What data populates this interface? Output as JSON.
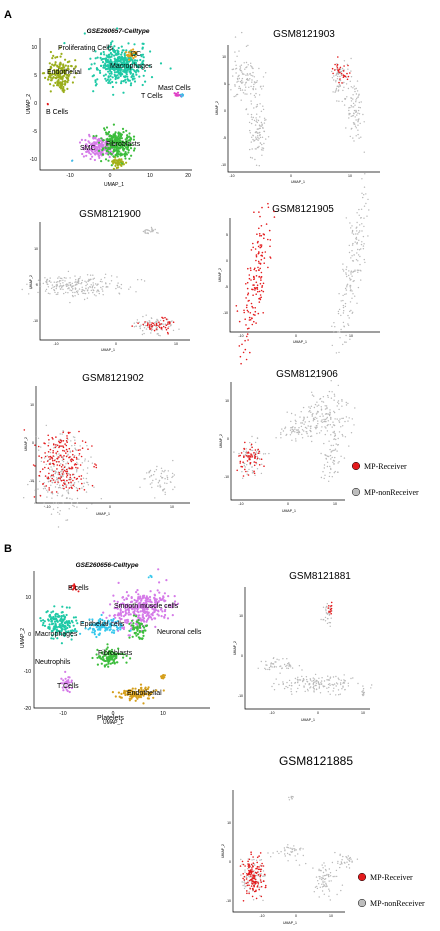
{
  "panel_a": {
    "label": "A",
    "plots": [
      {
        "title": "GSE260657-Celltype",
        "xlabel": "UMAP_1",
        "ylabel": "UMAP_2",
        "xticks": [
          "-10",
          "0",
          "10",
          "20"
        ],
        "yticks": [
          "10",
          "5",
          "0",
          "-5",
          "-10"
        ],
        "clusters": [
          "Proliferating Cells",
          "DC",
          "Macrophages",
          "Endothelial",
          "Mast Cells",
          "T Cells",
          "B Cells",
          "SMC",
          "Fibroblasts"
        ]
      },
      {
        "title": "GSM8121903",
        "xlabel": "UMAP_1",
        "ylabel": "UMAP_2",
        "xticks": [
          "-10",
          "0",
          "10"
        ],
        "yticks": [
          "10",
          "5",
          "0",
          "-5",
          "-10"
        ]
      },
      {
        "title": "GSM8121900",
        "xlabel": "UMAP_1",
        "ylabel": "UMAP_2",
        "xticks": [
          "-10",
          "0",
          "10"
        ],
        "yticks": [
          "10",
          "0",
          "-10"
        ]
      },
      {
        "title": "GSM8121905",
        "xlabel": "UMAP_1",
        "ylabel": "UMAP_2",
        "xticks": [
          "-10",
          "0",
          "10"
        ],
        "yticks": [
          "5",
          "0",
          "-5",
          "-10"
        ]
      },
      {
        "title": "GSM8121902",
        "xlabel": "UMAP_1",
        "ylabel": "UMAP_2",
        "xticks": [
          "-10",
          "0",
          "10"
        ],
        "yticks": [
          "10",
          "0",
          "-10"
        ]
      },
      {
        "title": "GSM8121906",
        "xlabel": "UMAP_1",
        "ylabel": "UMAP_2",
        "xticks": [
          "-10",
          "0",
          "10"
        ],
        "yticks": [
          "10",
          "0",
          "-10"
        ]
      }
    ],
    "legend": [
      {
        "label": "MP-Receiver",
        "color": "#e31a1c"
      },
      {
        "label": "MP-nonReceiver",
        "color": "#bdbdbd"
      }
    ]
  },
  "panel_b": {
    "label": "B",
    "plots": [
      {
        "title": "GSE260656-Celltype",
        "xlabel": "UMAP_1",
        "ylabel": "UMAP_2",
        "xticks": [
          "-10",
          "0",
          "10"
        ],
        "yticks": [
          "10",
          "0",
          "-10",
          "-20"
        ],
        "clusters": [
          "B cells",
          "Smooth muscle cells",
          "Epithelial cells",
          "Neuronal cells",
          "Macrophages",
          "Fibroblasts",
          "Neutrophils",
          "T Cells",
          "Endothelial",
          "Platelets"
        ]
      },
      {
        "title": "GSM8121881",
        "xlabel": "UMAP_1",
        "ylabel": "UMAP_2",
        "xticks": [
          "-10",
          "0",
          "10"
        ],
        "yticks": [
          "10",
          "0",
          "-10"
        ]
      },
      {
        "title": "GSM8121885",
        "xlabel": "UMAP_1",
        "ylabel": "UMAP_2",
        "xticks": [
          "-10",
          "0",
          "10"
        ],
        "yticks": [
          "10",
          "0",
          "-10"
        ]
      }
    ],
    "legend": [
      {
        "label": "MP-Receiver",
        "color": "#e31a1c"
      },
      {
        "label": "MP-nonReceiver",
        "color": "#bdbdbd"
      }
    ]
  }
}
